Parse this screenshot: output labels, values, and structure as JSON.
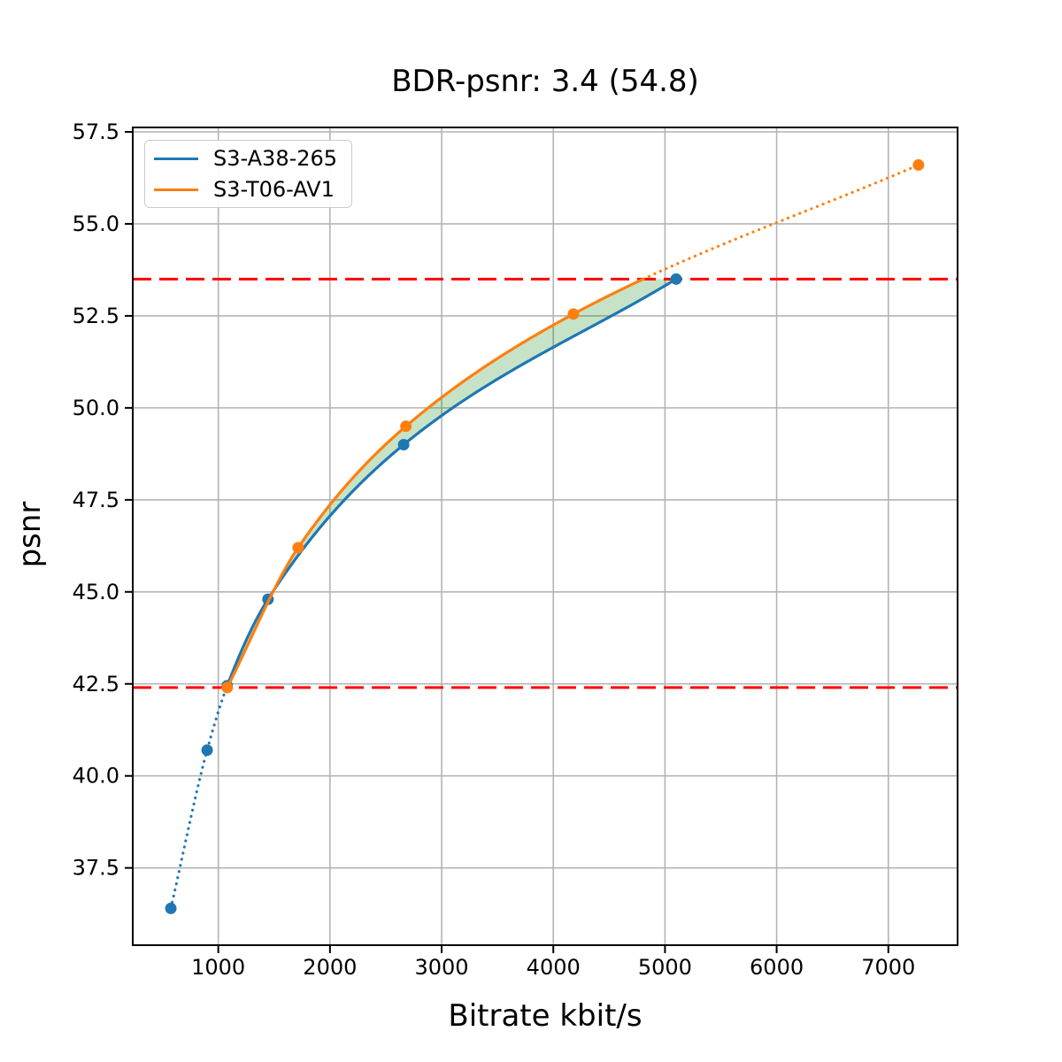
{
  "chart_data": {
    "type": "line",
    "title": "BDR-psnr: 3.4 (54.8)",
    "xlabel": "Bitrate kbit/s",
    "ylabel": "psnr",
    "xlim": [
      234,
      7620
    ],
    "ylim": [
      35.4,
      57.62
    ],
    "xticks": [
      1000,
      2000,
      3000,
      4000,
      5000,
      6000,
      7000
    ],
    "yticks": [
      37.5,
      40.0,
      42.5,
      45.0,
      47.5,
      50.0,
      52.5,
      55.0,
      57.5
    ],
    "grid": true,
    "grid_color": "#b4b4b4",
    "legend_position": "upper left",
    "series": [
      {
        "name": "S3-A38-265",
        "color": "#1f77b4",
        "x": [
          575,
          900,
          1080,
          1445,
          2660,
          5100
        ],
        "y": [
          36.4,
          40.7,
          42.45,
          44.8,
          49.0,
          53.5
        ],
        "dotted_until_x": 1080
      },
      {
        "name": "S3-T06-AV1",
        "color": "#ff7f0e",
        "x": [
          1080,
          1715,
          2680,
          4180,
          7270
        ],
        "y": [
          42.4,
          46.2,
          49.5,
          52.55,
          56.6
        ],
        "dotted_above_y": 53.5
      }
    ],
    "hlines": [
      {
        "y": 53.5,
        "color": "#ff0000",
        "style": "dashed"
      },
      {
        "y": 42.4,
        "color": "#ff0000",
        "style": "dashed"
      }
    ],
    "fill_between": {
      "lower": 0,
      "upper": 1,
      "from_x": 1080,
      "to_x": 5100,
      "top_clip_y": 53.5,
      "color": "#008000",
      "alpha": 0.22
    }
  }
}
